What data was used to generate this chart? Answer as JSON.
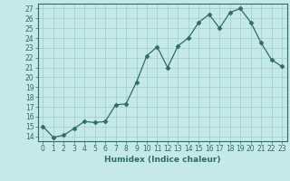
{
  "x": [
    0,
    1,
    2,
    3,
    4,
    5,
    6,
    7,
    8,
    9,
    10,
    11,
    12,
    13,
    14,
    15,
    16,
    17,
    18,
    19,
    20,
    21,
    22,
    23
  ],
  "y": [
    15.0,
    13.9,
    14.1,
    14.8,
    15.5,
    15.4,
    15.5,
    17.2,
    17.3,
    19.5,
    22.2,
    23.1,
    21.0,
    23.2,
    24.0,
    25.6,
    26.4,
    25.0,
    26.6,
    27.0,
    25.6,
    23.5,
    21.8,
    21.1
  ],
  "xlabel": "Humidex (Indice chaleur)",
  "ylim": [
    13.5,
    27.5
  ],
  "xlim": [
    -0.5,
    23.5
  ],
  "yticks": [
    14,
    15,
    16,
    17,
    18,
    19,
    20,
    21,
    22,
    23,
    24,
    25,
    26,
    27
  ],
  "ytick_labels": [
    "14",
    "15",
    "16",
    "17",
    "18",
    "19",
    "20",
    "21",
    "22",
    "23",
    "24",
    "25",
    "26",
    "27"
  ],
  "xticks": [
    0,
    1,
    2,
    3,
    4,
    5,
    6,
    7,
    8,
    9,
    10,
    11,
    12,
    13,
    14,
    15,
    16,
    17,
    18,
    19,
    20,
    21,
    22,
    23
  ],
  "line_color": "#2d6e63",
  "marker": "D",
  "marker_size": 2.5,
  "bg_color": "#c5e8e8",
  "grid_color": "#9dcece",
  "label_fontsize": 6.5,
  "tick_fontsize": 5.5
}
